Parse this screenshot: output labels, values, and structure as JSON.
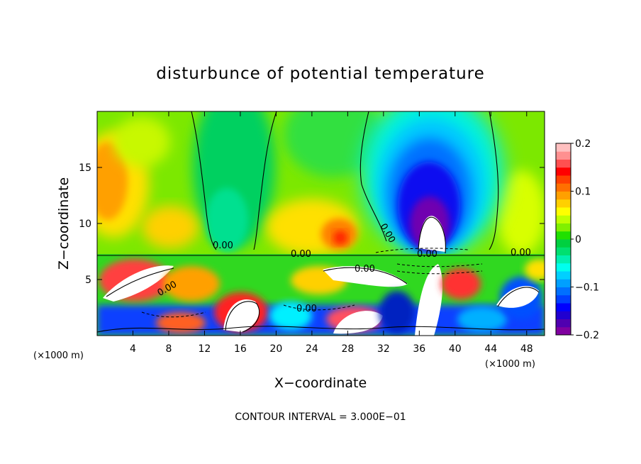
{
  "chart_data": {
    "type": "heatmap",
    "title": "disturbunce of potential temperature",
    "xlabel": "X−coordinate",
    "ylabel": "Z−coordinate",
    "x_unit_label": "(×1000 m)",
    "x_unit_label_right": "(×1000 m)",
    "xlim": [
      0,
      50
    ],
    "ylim": [
      0,
      20
    ],
    "x_ticks": [
      4,
      8,
      12,
      16,
      20,
      24,
      28,
      32,
      36,
      40,
      44,
      48
    ],
    "x_tick_labels": [
      "4",
      "8",
      "12",
      "16",
      "20",
      "24",
      "28",
      "32",
      "36",
      "40",
      "44",
      "48"
    ],
    "y_ticks": [
      5,
      10,
      15
    ],
    "y_tick_labels": [
      "5",
      "10",
      "15"
    ],
    "colorbar": {
      "min": -0.2,
      "max": 0.2,
      "ticks": [
        0.2,
        0.1,
        0,
        -0.1,
        -0.2
      ],
      "tick_labels": [
        "0.2",
        "0.1",
        "0",
        "−0.1",
        "−0.2"
      ],
      "colors": [
        "#8000a0",
        "#5000b0",
        "#2000d0",
        "#0000ff",
        "#0040ff",
        "#0070ff",
        "#00a0ff",
        "#00d0ff",
        "#00ffee",
        "#00f0b0",
        "#00e070",
        "#00d040",
        "#20e000",
        "#80f000",
        "#c0ff00",
        "#ffff00",
        "#ffd000",
        "#ffa000",
        "#ff7000",
        "#ff4000",
        "#ff0000",
        "#ff5050",
        "#ff9090",
        "#ffc0c0"
      ]
    },
    "field_features": [
      {
        "name": "cold plume",
        "x": 37,
        "z": 13,
        "value": -0.2
      },
      {
        "name": "warm region left",
        "x": 2,
        "z": 15,
        "value": 0.12
      },
      {
        "name": "warm region mid",
        "x": 27,
        "z": 10,
        "value": 0.15
      },
      {
        "name": "background upper layer",
        "value": 0.03
      },
      {
        "name": "turbulent boundary layer",
        "z_top": 7.2
      }
    ],
    "contour_labels": [
      "0.00",
      "0.00",
      "0.00",
      "0.00",
      "0.00",
      "0.00",
      "0.00",
      "0.00"
    ],
    "contour_interval_text": "CONTOUR INTERVAL = 3.000E−01"
  }
}
